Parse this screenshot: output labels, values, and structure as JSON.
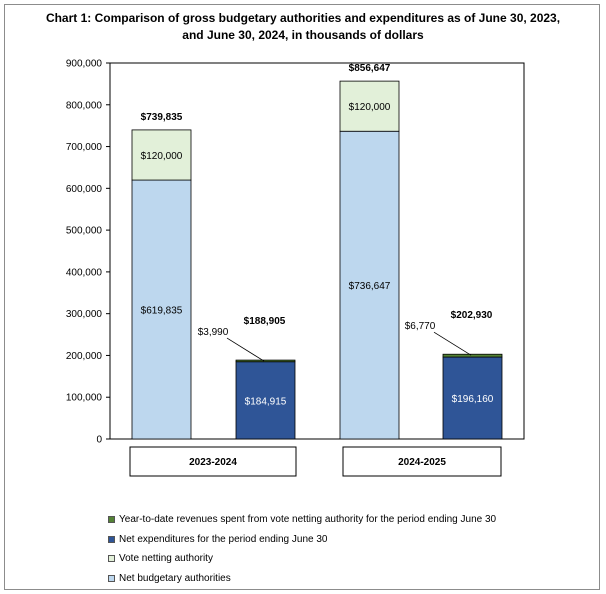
{
  "chart_data": {
    "type": "bar",
    "stacked": true,
    "title_line1": "Chart 1: Comparison of gross budgetary authorities and expenditures as of June 30, 2023,",
    "title_line2": "and June 30, 2024, in thousands of dollars",
    "ylim": [
      0,
      900000
    ],
    "yticks": [
      "0",
      "100,000",
      "200,000",
      "300,000",
      "400,000",
      "500,000",
      "600,000",
      "700,000",
      "800,000",
      "900,000"
    ],
    "ytick_values": [
      0,
      100000,
      200000,
      300000,
      400000,
      500000,
      600000,
      700000,
      800000,
      900000
    ],
    "groups": [
      "2023-2024",
      "2024-2025"
    ],
    "bars": [
      {
        "group": 0,
        "segments": [
          {
            "series": 3,
            "value": 619835,
            "label": "$619,835"
          },
          {
            "series": 2,
            "value": 120000,
            "label": "$120,000"
          }
        ],
        "total_label": "$739,835"
      },
      {
        "group": 0,
        "segments": [
          {
            "series": 1,
            "value": 184915,
            "label": "$184,915"
          },
          {
            "series": 0,
            "value": 3990,
            "label": "$3,990"
          }
        ],
        "total_label": "$188,905"
      },
      {
        "group": 1,
        "segments": [
          {
            "series": 3,
            "value": 736647,
            "label": "$736,647"
          },
          {
            "series": 2,
            "value": 120000,
            "label": "$120,000"
          }
        ],
        "total_label": "$856,647"
      },
      {
        "group": 1,
        "segments": [
          {
            "series": 1,
            "value": 196160,
            "label": "$196,160"
          },
          {
            "series": 0,
            "value": 6770,
            "label": "$6,770"
          }
        ],
        "total_label": "$202,930"
      }
    ],
    "series": [
      {
        "name": "Year-to-date revenues spent from vote netting authority for the period ending June 30",
        "color": "#548235"
      },
      {
        "name": "Net expenditures for the period ending June 30",
        "color": "#2f5597"
      },
      {
        "name": "Vote netting authority",
        "color": "#e2f0d9"
      },
      {
        "name": "Net budgetary authorities",
        "color": "#bdd7ee"
      }
    ],
    "legend_position": "bottom",
    "grid": false
  }
}
